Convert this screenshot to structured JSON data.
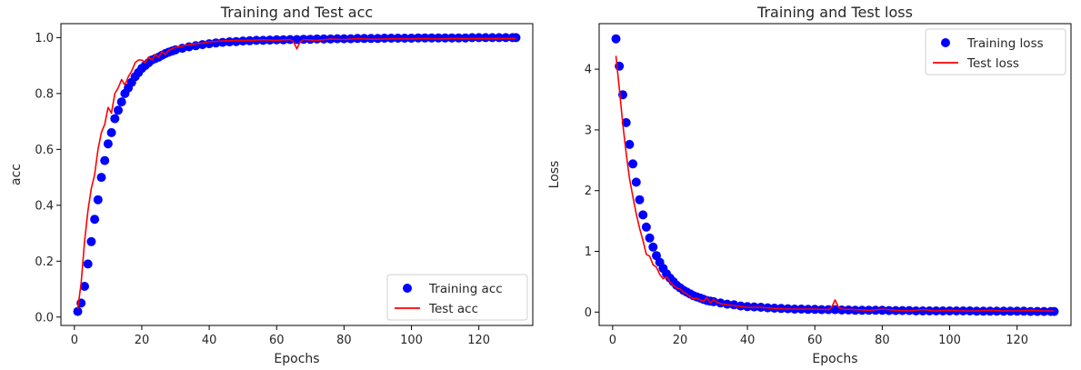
{
  "chart_data": [
    {
      "type": "scatter+line",
      "title": "Training and Test acc",
      "xlabel": "Epochs",
      "ylabel": "acc",
      "xlim": [
        -4,
        136
      ],
      "ylim": [
        -0.03,
        1.05
      ],
      "xticks": [
        0,
        20,
        40,
        60,
        80,
        100,
        120
      ],
      "yticks": [
        0.0,
        0.2,
        0.4,
        0.6,
        0.8,
        1.0
      ],
      "ytick_labels": [
        "0.0",
        "0.2",
        "0.4",
        "0.6",
        "0.8",
        "1.0"
      ],
      "grid": false,
      "legend_position": "lower-right",
      "series": [
        {
          "name": "Training acc",
          "style": "scatter",
          "color": "#0000ff",
          "x": [
            1,
            2,
            3,
            4,
            5,
            6,
            7,
            8,
            9,
            10,
            11,
            12,
            13,
            14,
            15,
            16,
            17,
            18,
            19,
            20,
            21,
            22,
            23,
            24,
            25,
            26,
            27,
            28,
            29,
            30,
            32,
            34,
            36,
            38,
            40,
            42,
            44,
            46,
            48,
            50,
            52,
            54,
            56,
            58,
            60,
            62,
            64,
            66,
            68,
            70,
            72,
            74,
            76,
            78,
            80,
            82,
            84,
            86,
            88,
            90,
            92,
            94,
            96,
            98,
            100,
            102,
            104,
            106,
            108,
            110,
            112,
            114,
            116,
            118,
            120,
            122,
            124,
            126,
            128,
            130,
            131
          ],
          "y": [
            0.02,
            0.05,
            0.11,
            0.19,
            0.27,
            0.35,
            0.42,
            0.5,
            0.56,
            0.62,
            0.66,
            0.71,
            0.74,
            0.77,
            0.8,
            0.82,
            0.84,
            0.86,
            0.875,
            0.89,
            0.9,
            0.91,
            0.92,
            0.925,
            0.93,
            0.937,
            0.943,
            0.948,
            0.952,
            0.956,
            0.962,
            0.967,
            0.971,
            0.975,
            0.978,
            0.981,
            0.983,
            0.985,
            0.986,
            0.988,
            0.989,
            0.99,
            0.99,
            0.991,
            0.992,
            0.992,
            0.993,
            0.993,
            0.994,
            0.994,
            0.995,
            0.995,
            0.995,
            0.996,
            0.996,
            0.996,
            0.997,
            0.997,
            0.997,
            0.997,
            0.998,
            0.998,
            0.998,
            0.998,
            0.998,
            0.999,
            0.999,
            0.999,
            0.999,
            0.999,
            0.999,
            0.999,
            0.999,
            1.0,
            1.0,
            1.0,
            1.0,
            1.0,
            1.0,
            1.0,
            1.0
          ]
        },
        {
          "name": "Test acc",
          "style": "line",
          "color": "#ff0000",
          "x": [
            1,
            2,
            3,
            4,
            5,
            6,
            7,
            8,
            9,
            10,
            11,
            12,
            13,
            14,
            15,
            16,
            17,
            18,
            19,
            20,
            21,
            22,
            23,
            24,
            25,
            26,
            27,
            28,
            30,
            32,
            34,
            36,
            38,
            40,
            44,
            48,
            52,
            56,
            60,
            64,
            65,
            66,
            67,
            68,
            72,
            76,
            80,
            84,
            88,
            92,
            96,
            100,
            104,
            108,
            112,
            116,
            120,
            124,
            128,
            131
          ],
          "y": [
            0.03,
            0.12,
            0.27,
            0.38,
            0.46,
            0.51,
            0.6,
            0.66,
            0.69,
            0.75,
            0.73,
            0.8,
            0.82,
            0.85,
            0.83,
            0.86,
            0.88,
            0.91,
            0.92,
            0.92,
            0.91,
            0.93,
            0.92,
            0.94,
            0.93,
            0.95,
            0.94,
            0.955,
            0.965,
            0.97,
            0.975,
            0.978,
            0.98,
            0.985,
            0.988,
            0.99,
            0.99,
            0.992,
            0.99,
            0.993,
            0.985,
            0.96,
            0.985,
            0.993,
            0.99,
            0.995,
            0.993,
            0.996,
            0.994,
            0.995,
            0.996,
            0.995,
            0.997,
            0.995,
            0.997,
            0.996,
            0.997,
            0.996,
            0.997,
            0.997
          ]
        }
      ]
    },
    {
      "type": "scatter+line",
      "title": "Training and Test loss",
      "xlabel": "Epochs",
      "ylabel": "Loss",
      "xlim": [
        -4,
        136
      ],
      "ylim": [
        -0.22,
        4.75
      ],
      "xticks": [
        0,
        20,
        40,
        60,
        80,
        100,
        120
      ],
      "yticks": [
        0,
        1,
        2,
        3,
        4
      ],
      "ytick_labels": [
        "0",
        "1",
        "2",
        "3",
        "4"
      ],
      "grid": false,
      "legend_position": "upper-right",
      "series": [
        {
          "name": "Training loss",
          "style": "scatter",
          "color": "#0000ff",
          "x": [
            1,
            2,
            3,
            4,
            5,
            6,
            7,
            8,
            9,
            10,
            11,
            12,
            13,
            14,
            15,
            16,
            17,
            18,
            19,
            20,
            21,
            22,
            23,
            24,
            25,
            26,
            27,
            28,
            29,
            30,
            32,
            34,
            36,
            38,
            40,
            42,
            44,
            46,
            48,
            50,
            52,
            54,
            56,
            58,
            60,
            62,
            64,
            66,
            68,
            70,
            72,
            74,
            76,
            78,
            80,
            82,
            84,
            86,
            88,
            90,
            92,
            94,
            96,
            98,
            100,
            102,
            104,
            106,
            108,
            110,
            112,
            114,
            116,
            118,
            120,
            122,
            124,
            126,
            128,
            130,
            131
          ],
          "y": [
            4.5,
            4.05,
            3.58,
            3.12,
            2.76,
            2.44,
            2.14,
            1.85,
            1.6,
            1.4,
            1.22,
            1.07,
            0.93,
            0.82,
            0.72,
            0.63,
            0.56,
            0.5,
            0.44,
            0.4,
            0.36,
            0.33,
            0.3,
            0.27,
            0.25,
            0.23,
            0.21,
            0.19,
            0.18,
            0.17,
            0.15,
            0.13,
            0.12,
            0.1,
            0.09,
            0.085,
            0.08,
            0.07,
            0.065,
            0.06,
            0.055,
            0.05,
            0.05,
            0.045,
            0.045,
            0.04,
            0.04,
            0.04,
            0.035,
            0.035,
            0.03,
            0.03,
            0.03,
            0.03,
            0.03,
            0.025,
            0.025,
            0.025,
            0.025,
            0.02,
            0.02,
            0.02,
            0.02,
            0.02,
            0.02,
            0.02,
            0.02,
            0.02,
            0.015,
            0.015,
            0.015,
            0.015,
            0.015,
            0.015,
            0.015,
            0.015,
            0.01,
            0.01,
            0.01,
            0.01,
            0.01
          ]
        },
        {
          "name": "Test loss",
          "style": "line",
          "color": "#ff0000",
          "x": [
            1,
            2,
            3,
            4,
            5,
            6,
            7,
            8,
            9,
            10,
            11,
            12,
            13,
            14,
            15,
            16,
            17,
            18,
            19,
            20,
            21,
            22,
            23,
            24,
            25,
            26,
            27,
            28,
            29,
            30,
            31,
            32,
            34,
            36,
            38,
            40,
            44,
            48,
            52,
            56,
            60,
            64,
            65,
            66,
            67,
            68,
            72,
            76,
            80,
            84,
            88,
            92,
            96,
            100,
            104,
            108,
            112,
            116,
            120,
            124,
            128,
            131
          ],
          "y": [
            4.22,
            3.68,
            3.1,
            2.62,
            2.2,
            1.9,
            1.62,
            1.38,
            1.18,
            0.95,
            0.92,
            0.78,
            0.74,
            0.62,
            0.55,
            0.58,
            0.5,
            0.44,
            0.4,
            0.38,
            0.33,
            0.3,
            0.25,
            0.22,
            0.23,
            0.2,
            0.18,
            0.24,
            0.15,
            0.21,
            0.16,
            0.14,
            0.12,
            0.11,
            0.09,
            0.08,
            0.08,
            0.06,
            0.05,
            0.05,
            0.05,
            0.04,
            0.08,
            0.2,
            0.08,
            0.05,
            0.04,
            0.03,
            0.05,
            0.03,
            0.02,
            0.04,
            0.02,
            0.03,
            0.02,
            0.02,
            0.03,
            0.02,
            0.02,
            0.03,
            0.02,
            0.02
          ]
        }
      ]
    }
  ]
}
